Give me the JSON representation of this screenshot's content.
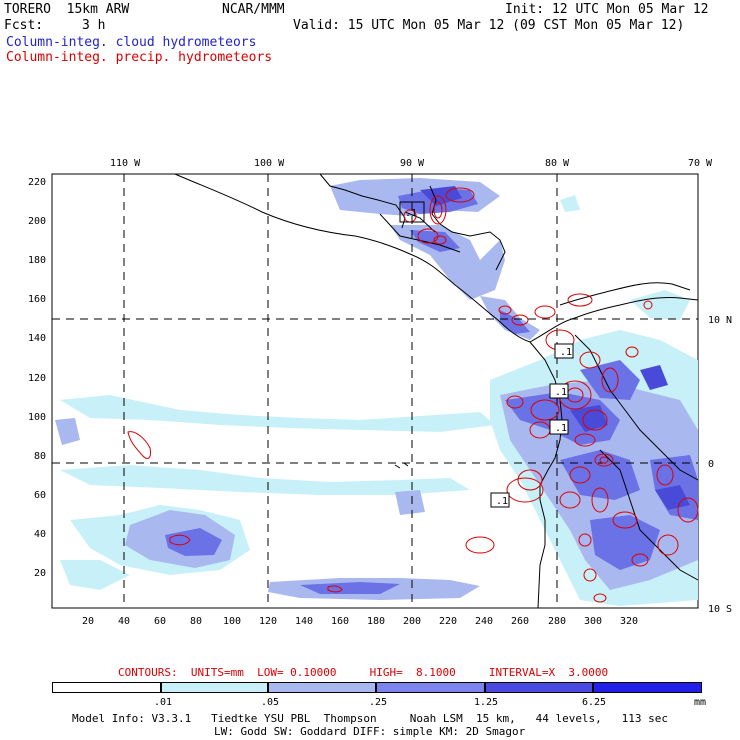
{
  "header": {
    "model": "TORERO  15km ARW",
    "center": "NCAR/MMM",
    "init": "Init: 12 UTC Mon 05 Mar 12",
    "fcst_label": "Fcst:",
    "fcst_value": "3 h",
    "valid": "Valid: 15 UTC Mon 05 Mar 12 (09 CST Mon 05 Mar 12)",
    "field1": "Column-integ. cloud hydrometeors",
    "field2": "Column-integ. precip. hydrometeors"
  },
  "map": {
    "lon_labels": [
      "110 W",
      "100 W",
      "90 W",
      "80 W",
      "70 W"
    ],
    "lat_labels": [
      "10 N",
      "0",
      "10 S"
    ],
    "y_ticks": [
      "220",
      "200",
      "180",
      "160",
      "140",
      "120",
      "100",
      "80",
      "60",
      "40",
      "20"
    ],
    "x_ticks": [
      "20",
      "40",
      "60",
      "80",
      "100",
      "120",
      "140",
      "160",
      "180",
      "200",
      "220",
      "240",
      "260",
      "280",
      "300",
      "320"
    ],
    "box_labels": [
      ".1",
      ".1",
      ".1",
      ".1",
      ".1"
    ],
    "colors": {
      "cloud_light": "#c8f0f8",
      "cloud_mid": "#aab8f0",
      "cloud_dark": "#6a72e6",
      "cloud_darker": "#4a4ad8",
      "precip_contour": "#dd0000"
    }
  },
  "footer": {
    "contours_line": "CONTOURS:  UNITS=mm  LOW= 0.10000     HIGH=  8.1000     INTERVAL=X  3.0000",
    "colorbar_labels": [
      ".01",
      ".05",
      ".25",
      "1.25",
      "6.25",
      "mm"
    ],
    "colorbar_colors": [
      "#ffffff",
      "#c8f0f8",
      "#aab8f0",
      "#7c84ee",
      "#4a4ae0",
      "#2020e8"
    ],
    "model_info_1": "Model Info: V3.3.1   Tiedtke YSU PBL  Thompson     Noah LSM  15 km,   44 levels,   113 sec",
    "model_info_2": "LW: Godd SW: Goddard DIFF: simple KM: 2D Smagor"
  }
}
